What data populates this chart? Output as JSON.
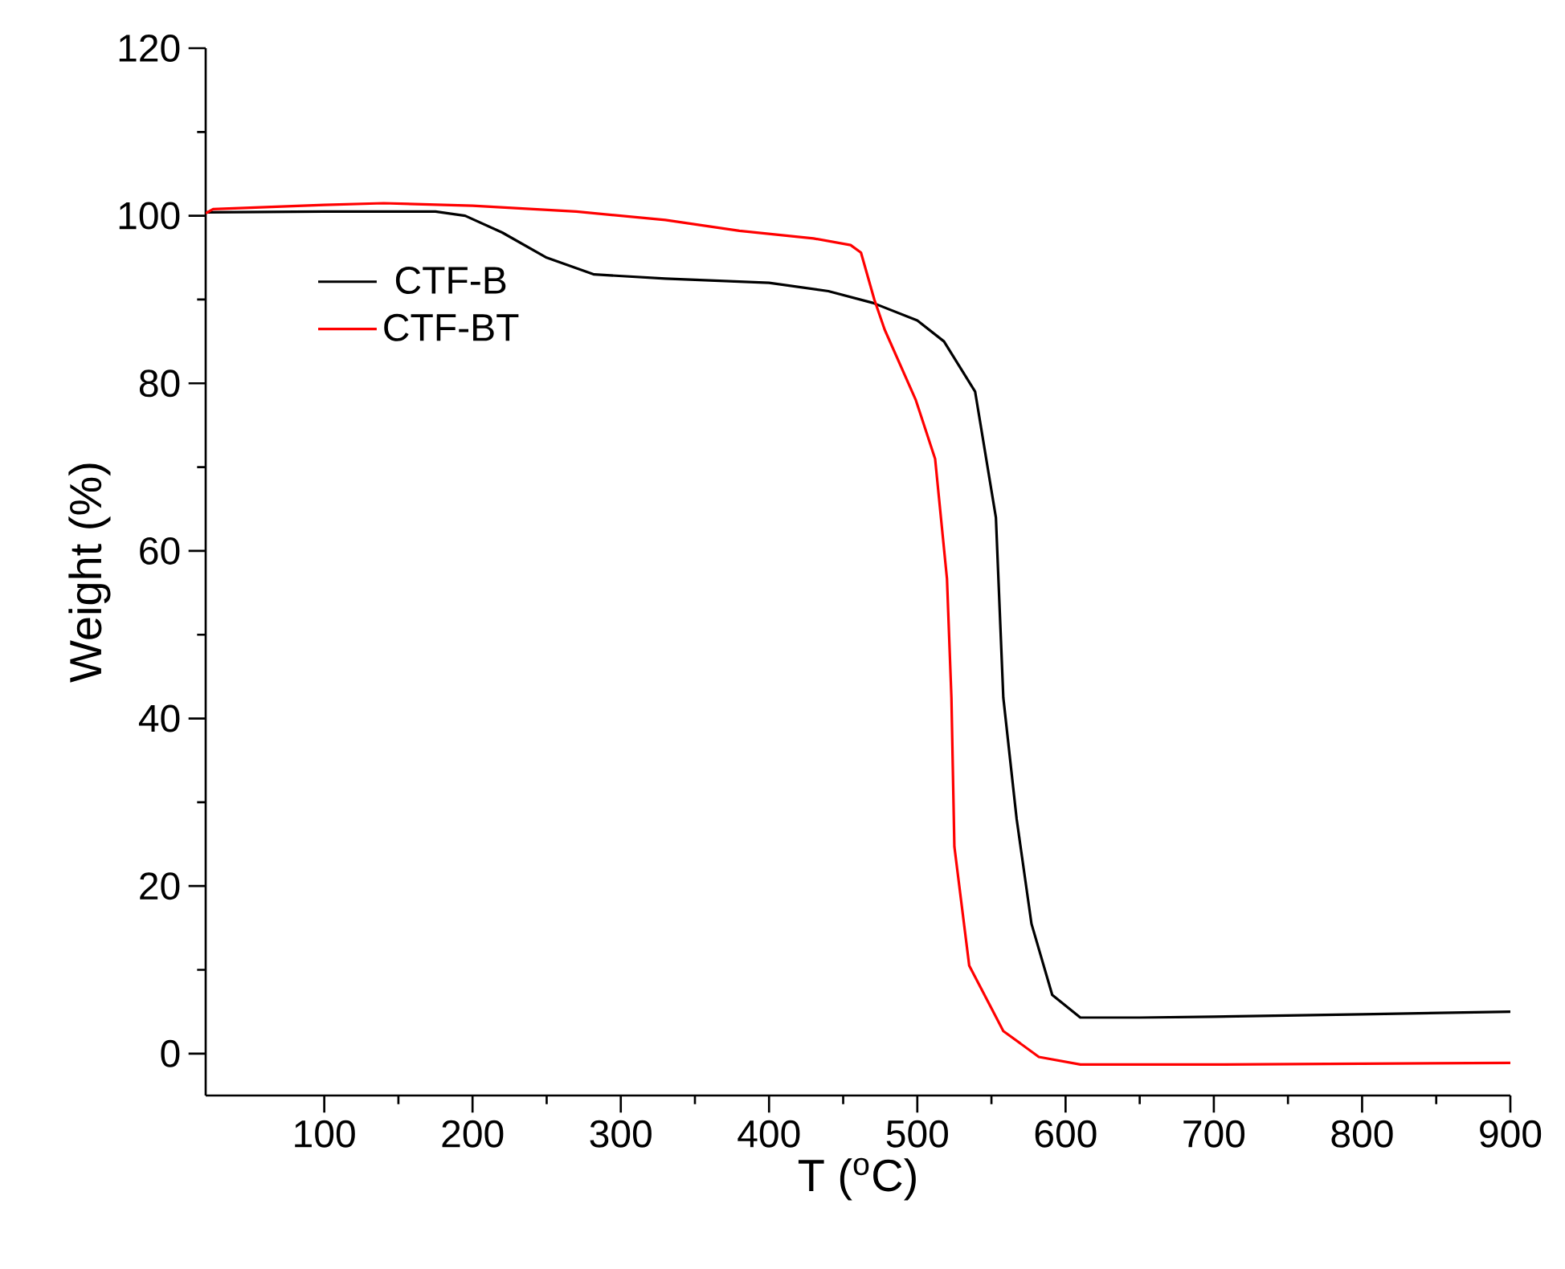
{
  "chart_data": {
    "type": "line",
    "xlabel": "T ($^{o}$C)",
    "ylabel": "Weight (%)",
    "xlim": [
      20,
      900
    ],
    "ylim": [
      -5,
      120
    ],
    "xticks": [
      100,
      200,
      300,
      400,
      500,
      600,
      700,
      800,
      900
    ],
    "yticks": [
      0,
      20,
      40,
      60,
      80,
      100,
      120
    ],
    "legend": "top left",
    "grid": false,
    "marker": "none",
    "line_style": "solid",
    "series": [
      {
        "name": "CTF-B",
        "color": "#000000",
        "x": [
          20,
          100,
          175,
          195,
          220,
          250,
          282,
          330,
          400,
          440,
          470,
          500,
          518,
          539,
          553,
          558,
          567,
          577,
          591,
          610,
          650,
          700,
          800,
          900
        ],
        "values": [
          100.4,
          100.5,
          100.5,
          100,
          98,
          95,
          93,
          92.5,
          92,
          91,
          89.6,
          87.5,
          85,
          79,
          64,
          42.5,
          28,
          15.5,
          7,
          4.3,
          4.3,
          4.4,
          4.7,
          5.0
        ]
      },
      {
        "name": "CTF-BT",
        "color": "#ff0000",
        "x": [
          20,
          25,
          100,
          140,
          200,
          270,
          330,
          380,
          430,
          455,
          462,
          471,
          478,
          499,
          512,
          520,
          523,
          525,
          535,
          558,
          582,
          610,
          700,
          900
        ],
        "values": [
          100.3,
          100.8,
          101.3,
          101.5,
          101.2,
          100.5,
          99.5,
          98.2,
          97.3,
          96.5,
          95.6,
          90,
          86.4,
          78,
          71,
          56.7,
          42.5,
          24.7,
          10.5,
          2.7,
          -0.4,
          -1.3,
          -1.3,
          -1.1
        ]
      }
    ]
  }
}
